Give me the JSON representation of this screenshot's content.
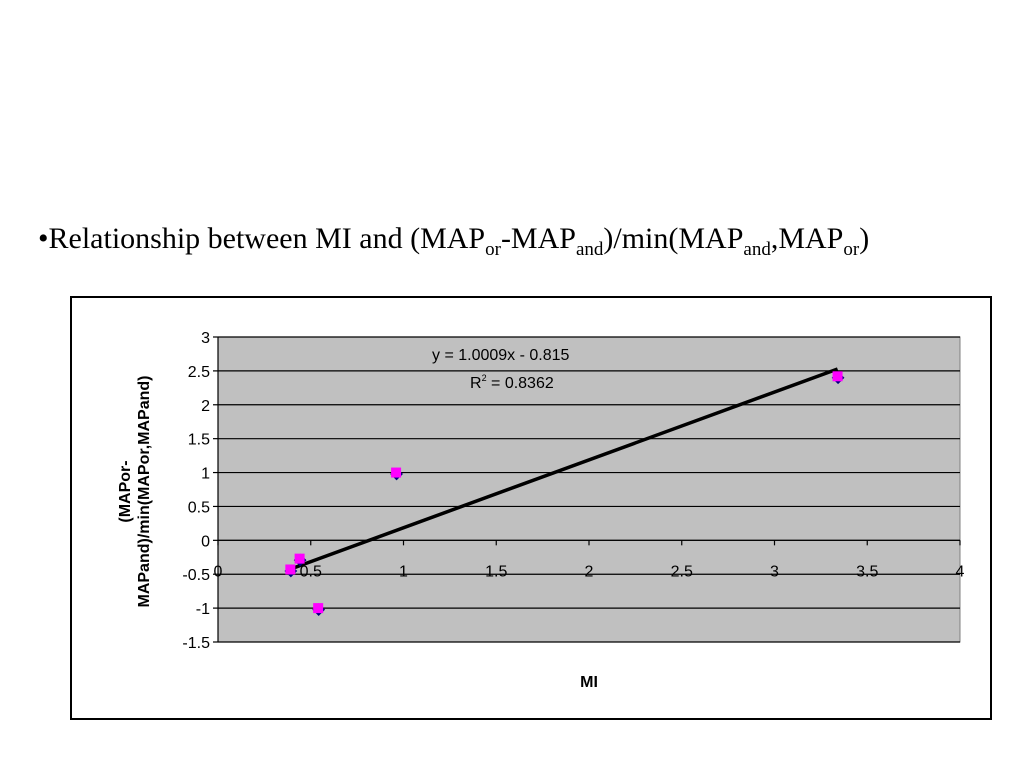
{
  "slide": {
    "title_parts": [
      {
        "text": "•Relationship between MI and (MAP",
        "sub": false
      },
      {
        "text": "or",
        "sub": true
      },
      {
        "text": "-MAP",
        "sub": false
      },
      {
        "text": "and",
        "sub": true
      },
      {
        "text": ")/min(MAP",
        "sub": false
      },
      {
        "text": "and",
        "sub": true
      },
      {
        "text": ",MAP",
        "sub": false
      },
      {
        "text": "or",
        "sub": true
      },
      {
        "text": ")",
        "sub": false
      }
    ]
  },
  "chart_data": {
    "type": "scatter",
    "title": "",
    "xlabel": "MI",
    "ylabel_lines": [
      "(MAPor-",
      "MAPand)/min(MAPor,MAPand)"
    ],
    "xlim": [
      0,
      4
    ],
    "ylim": [
      -1.5,
      3
    ],
    "xticks": [
      0,
      0.5,
      1,
      1.5,
      2,
      2.5,
      3,
      3.5,
      4
    ],
    "xtick_labels": [
      "0",
      "0.5",
      "1",
      "1.5",
      "2",
      "2.5",
      "3",
      "3.5",
      "4"
    ],
    "yticks": [
      3,
      2.5,
      2,
      1.5,
      1,
      0.5,
      0,
      -0.5,
      -1,
      -1.5
    ],
    "ytick_labels": [
      "3",
      "2.5",
      "2",
      "1.5",
      "1",
      "0.5",
      "0",
      "-0.5",
      "-1",
      "-1.5"
    ],
    "grid": "horizontal",
    "plot_background": "#c0c0c0",
    "points": [
      {
        "x": 0.39,
        "y": -0.43
      },
      {
        "x": 0.44,
        "y": -0.27
      },
      {
        "x": 0.54,
        "y": -1.0
      },
      {
        "x": 0.96,
        "y": 1.0
      },
      {
        "x": 3.34,
        "y": 2.42
      }
    ],
    "marker_color": "#ff00ff",
    "marker_shadow_color": "#000080",
    "trendline": {
      "slope": 1.0009,
      "intercept": -0.815,
      "x_range": [
        0.39,
        3.34
      ],
      "color": "#000000",
      "equation": "y = 1.0009x - 0.815",
      "r2_prefix": "R",
      "r2_exp": "2",
      "r2_value": " = 0.8362"
    }
  }
}
